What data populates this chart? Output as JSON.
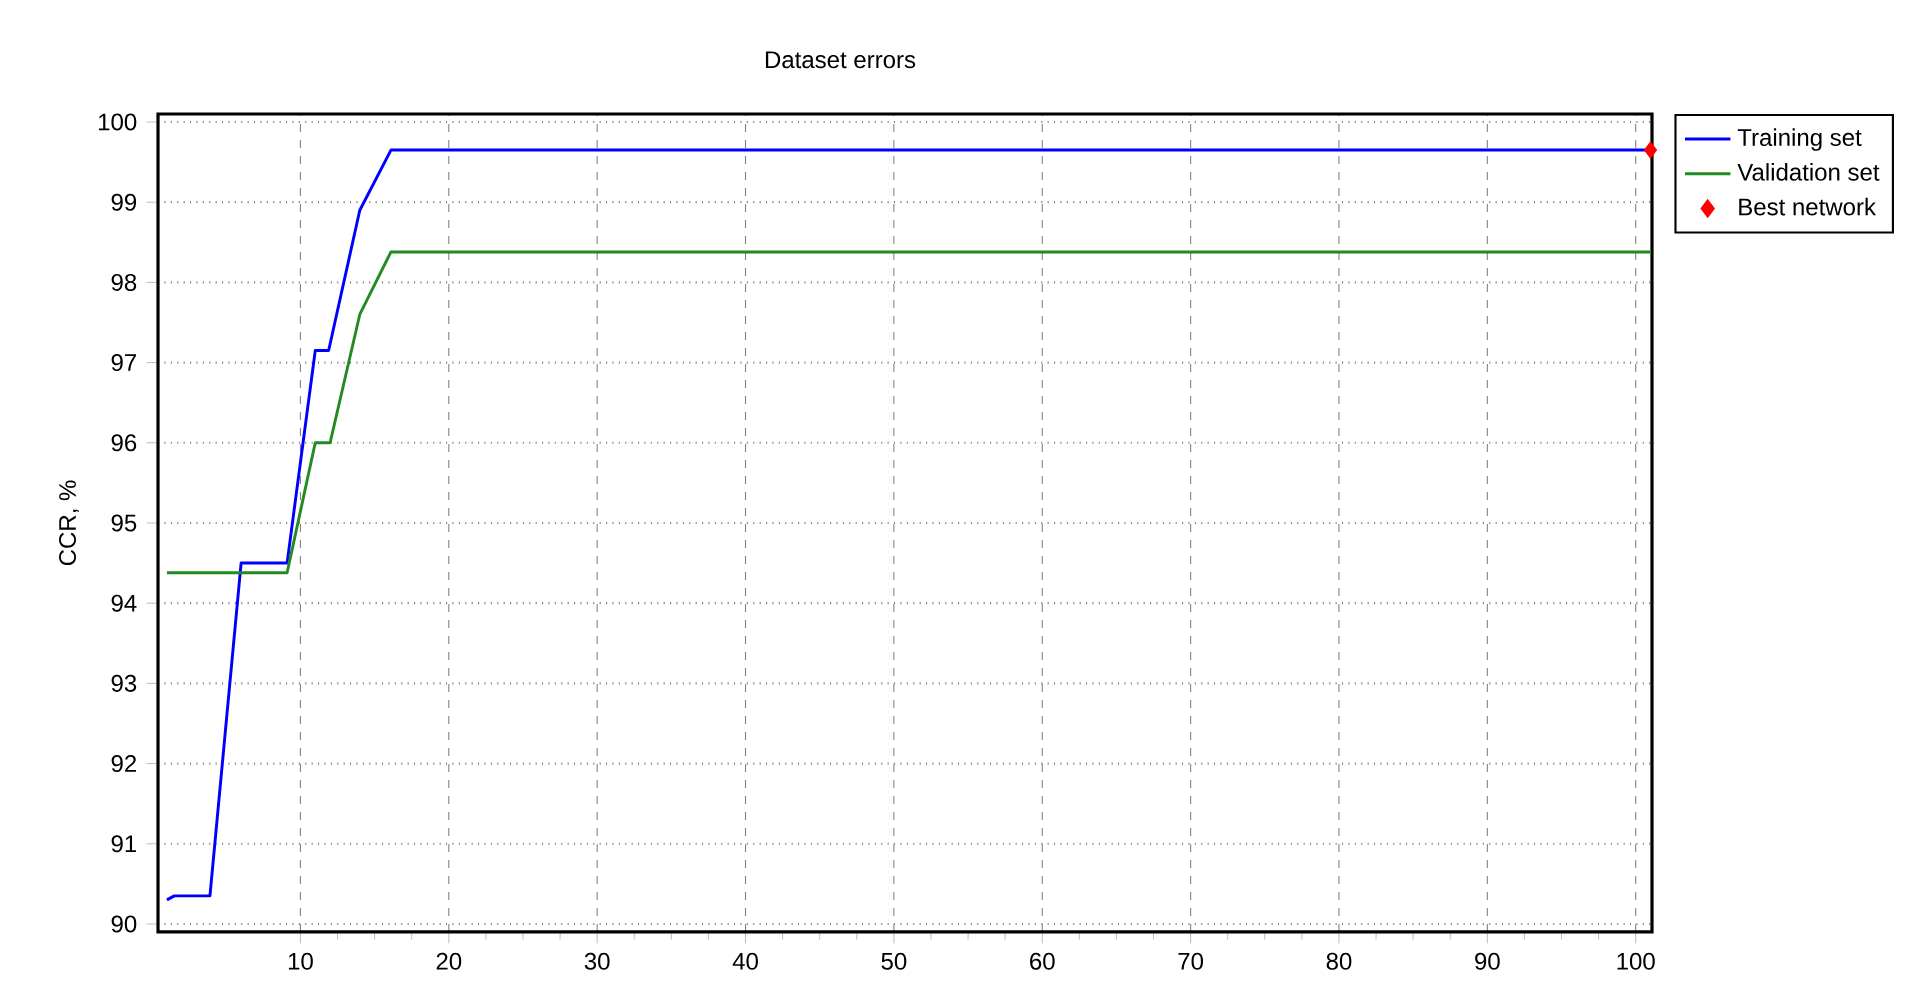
{
  "chart_data": {
    "type": "line",
    "title": "Dataset errors",
    "ylabel": "CCR, %",
    "xlim": [
      0.4,
      101.1
    ],
    "ylim": [
      89.9,
      100.1
    ],
    "xticks": [
      10,
      20,
      30,
      40,
      50,
      60,
      70,
      80,
      90,
      100
    ],
    "yticks": [
      90,
      91,
      92,
      93,
      94,
      95,
      96,
      97,
      98,
      99,
      100
    ],
    "grid": true,
    "legend": "right",
    "marker": "none",
    "series": [
      {
        "name": "Training set",
        "color": "#0000ff",
        "x": [
          1,
          1.5,
          3.9,
          6,
          9.1,
          11,
          11.9,
          14,
          16.1,
          101
        ],
        "values": [
          90.3,
          90.35,
          90.35,
          94.5,
          94.5,
          97.15,
          97.15,
          98.9,
          99.65,
          99.65
        ]
      },
      {
        "name": "Validation set",
        "color": "#228b22",
        "x": [
          1,
          9.1,
          11,
          12,
          14,
          16.1,
          101
        ],
        "values": [
          94.38,
          94.38,
          96,
          96,
          97.6,
          98.38,
          98.38
        ]
      },
      {
        "name": "Best network",
        "type": "scatter",
        "marker": "diamond",
        "color": "#ff0000",
        "x": [
          101
        ],
        "values": [
          99.65
        ]
      }
    ]
  }
}
